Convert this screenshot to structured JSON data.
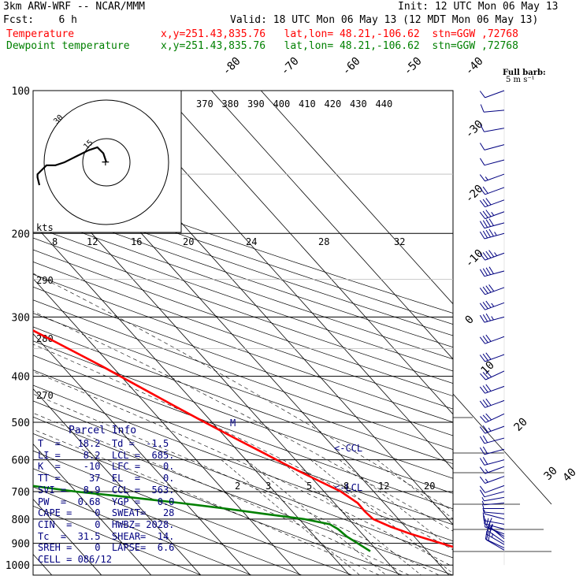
{
  "header": {
    "model": "3km ARW-WRF -- NCAR/MMM",
    "init": "Init: 12 UTC Mon 06 May 13",
    "fcst": "Fcst:    6 h",
    "valid": "Valid: 18 UTC Mon 06 May 13 (12 MDT Mon 06 May 13)",
    "temp_label": "Temperature",
    "dew_label": "Dewpoint temperature",
    "temp_loc": "x,y=251.43,835.76   lat,lon= 48.21,-106.62  stn=GGW ,72768",
    "dew_loc": "x,y=251.43,835.76   lat,lon= 48.21,-106.62  stn=GGW ,72768",
    "barb_title": "Full barb:",
    "barb_unit": "5 m s⁻¹"
  },
  "colors": {
    "temperature": "#ff0000",
    "dewpoint": "#008000",
    "text": "#000080"
  },
  "chart_data": {
    "type": "line",
    "ylabel_values": [
      "100",
      "200",
      "300",
      "400",
      "500",
      "600",
      "700",
      "800",
      "900",
      "1000"
    ],
    "isotherm_labels": [
      "-80",
      "-70",
      "-60",
      "-50",
      "-40",
      "-30",
      "-20",
      "-10",
      "0",
      "10",
      "20",
      "30",
      "40"
    ],
    "theta_labels": [
      "370",
      "380",
      "390",
      "400",
      "410",
      "420",
      "430",
      "440"
    ],
    "hodo_speed_labels": [
      "8",
      "12",
      "16",
      "20",
      "24",
      "28",
      "32"
    ],
    "hodo_unit": "kts",
    "mixing_ratio_labels": [
      "2",
      "3",
      "5",
      "8",
      "12",
      "20"
    ],
    "dry_adiabat_labels": [
      "290",
      "280",
      "270"
    ],
    "hodo_ring_label": "30",
    "hodo_ring_label2": "15",
    "lcl_label": "<-LCL",
    "ccl_label": "<-CCL",
    "m_label": "M",
    "temperature": {
      "p": [
        935,
        910,
        880,
        860,
        830,
        800,
        770,
        740,
        700,
        670,
        640,
        610,
        580,
        540,
        500,
        460,
        420,
        380,
        340,
        300,
        260,
        230,
        215,
        205,
        195,
        180,
        170,
        155,
        140,
        125,
        115,
        108
      ],
      "t": [
        18.2,
        15.4,
        12.0,
        9.8,
        7.0,
        4.9,
        4.6,
        4.7,
        3.4,
        1.3,
        -0.9,
        -3.1,
        -5.2,
        -8.3,
        -11.5,
        -14.8,
        -18.3,
        -22.1,
        -26.8,
        -32.3,
        -38.0,
        -43.0,
        -46.5,
        -50.2,
        -52.3,
        -54.0,
        -55.0,
        -56.0,
        -57.2,
        -58.0,
        -58.5,
        -59.0
      ]
    },
    "dewpoint": {
      "p": [
        935,
        900,
        870,
        840,
        820,
        800,
        780,
        760,
        740,
        720,
        700,
        680,
        660,
        640,
        630,
        610,
        580,
        540,
        500,
        460,
        420,
        380,
        340,
        300,
        260,
        230,
        200,
        175,
        160,
        145,
        130,
        120,
        110,
        100
      ],
      "td": [
        -1.5,
        -2.6,
        -3.6,
        -4.0,
        -4.8,
        -9.0,
        -16.0,
        -23.0,
        -31.0,
        -40.0,
        -50.0,
        -58.0,
        -64.0,
        -67.0,
        -67.0,
        -64.0,
        -59.0,
        -55.0,
        -52.0,
        -49.5,
        -48.5,
        -49.6,
        -52.2,
        -56.6,
        -62.5,
        -67.0,
        -72.5,
        -76.0,
        -77.5,
        -78.5,
        -79.0,
        -79.0,
        -79.0,
        -79.0
      ]
    },
    "wind": {
      "p": [
        930,
        920,
        905,
        895,
        880,
        870,
        860,
        840,
        820,
        800,
        780,
        760,
        740,
        720,
        700,
        680,
        650,
        620,
        600,
        570,
        540,
        510,
        480,
        450,
        420,
        390,
        360,
        330,
        300,
        280,
        260,
        240,
        220,
        200,
        190,
        180,
        170,
        160,
        150,
        140,
        130,
        120,
        110,
        100
      ],
      "dir": [
        300,
        295,
        300,
        305,
        310,
        300,
        290,
        285,
        280,
        285,
        275,
        270,
        265,
        260,
        255,
        250,
        250,
        250,
        255,
        255,
        255,
        250,
        245,
        250,
        250,
        245,
        250,
        250,
        255,
        250,
        250,
        255,
        250,
        255,
        255,
        250,
        250,
        250,
        250,
        255,
        255,
        260,
        265,
        250
      ],
      "spd": [
        6,
        9,
        13,
        12,
        8,
        6,
        5,
        5,
        5,
        4,
        4,
        4,
        4,
        4,
        5,
        6,
        8,
        9,
        10,
        11,
        12,
        14,
        15,
        16,
        17,
        17,
        17,
        17,
        18,
        19,
        20,
        22,
        23,
        23,
        21,
        19,
        15,
        11,
        8,
        7,
        6,
        5,
        5,
        7
      ]
    },
    "hodograph": {
      "u": [
        0,
        -1,
        -3,
        -6,
        -8,
        -10,
        -12,
        -14,
        -17,
        -20,
        -21,
        -22,
        -23,
        -23
      ],
      "v": [
        0,
        3,
        5,
        4,
        3,
        2,
        1,
        0,
        -1,
        -1,
        -2,
        -3,
        -4,
        -5
      ]
    }
  },
  "parcel": {
    "title": "Parcel Info",
    "lines": [
      "T  =   18.2  Td =  -1.5",
      "LI =    8.2  LCL =  685.",
      "K  =    -10  LFC =    0.",
      "TT =     37  EL  =    0.",
      "SVI =   8.9  CCL =  563.",
      "PW  =  0.68  YGP =   0.0",
      "CAPE =    0  SWEAT=   28",
      "CIN  =    0  HWBZ= 2028.",
      "Tc  =  31.5  SHEAR=  14.",
      "SREH =    0  LAPSE=  6.6",
      "CELL = 086/12"
    ]
  }
}
